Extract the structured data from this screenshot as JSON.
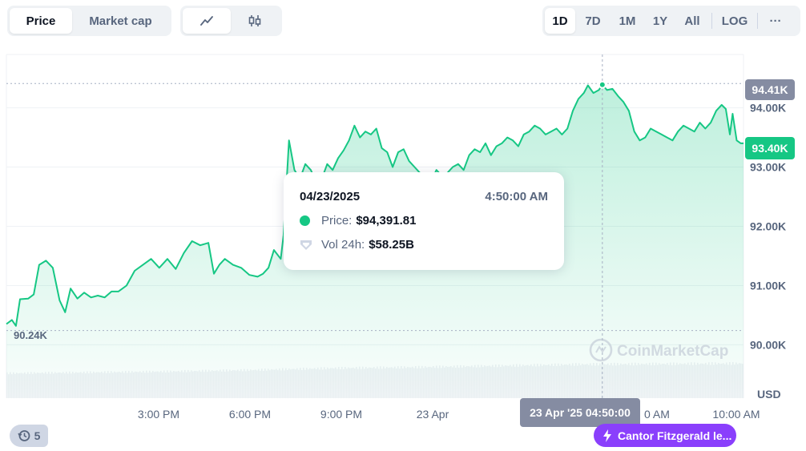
{
  "toolbar": {
    "metric_tabs": [
      "Price",
      "Market cap"
    ],
    "metric_active": "Price",
    "chart_style_icons": [
      "line-chart-icon",
      "candlestick-icon"
    ],
    "ranges": [
      "1D",
      "7D",
      "1M",
      "1Y",
      "All"
    ],
    "range_active": "1D",
    "log_label": "LOG",
    "more_label": "···"
  },
  "chart_data": {
    "type": "area",
    "x_labels": [
      "3:00 PM",
      "6:00 PM",
      "9:00 PM",
      "23 Apr",
      "",
      "10:00 AM"
    ],
    "hover_x_label": "23 Apr '25 04:50:00",
    "hidden_tick_fragment": "0 AM",
    "y_ticks": [
      "94.00K",
      "93.00K",
      "92.00K",
      "91.00K",
      "90.00K"
    ],
    "y_unit": "USD",
    "high_label": "94.41K",
    "low_label": "90.24K",
    "current_label": "93.40K",
    "ylim": [
      89.1,
      94.9
    ],
    "series": [
      {
        "values": [
          [
            0.0,
            90.35
          ],
          [
            0.2,
            90.42
          ],
          [
            0.35,
            90.32
          ],
          [
            0.5,
            90.77
          ],
          [
            0.8,
            90.78
          ],
          [
            1.0,
            90.85
          ],
          [
            1.2,
            91.35
          ],
          [
            1.45,
            91.42
          ],
          [
            1.7,
            91.3
          ],
          [
            1.95,
            90.75
          ],
          [
            2.15,
            90.55
          ],
          [
            2.35,
            90.95
          ],
          [
            2.6,
            90.78
          ],
          [
            2.85,
            90.88
          ],
          [
            3.1,
            90.8
          ],
          [
            3.35,
            90.83
          ],
          [
            3.6,
            90.8
          ],
          [
            3.85,
            90.9
          ],
          [
            4.1,
            90.9
          ],
          [
            4.4,
            91.0
          ],
          [
            4.7,
            91.25
          ],
          [
            5.0,
            91.35
          ],
          [
            5.3,
            91.45
          ],
          [
            5.6,
            91.3
          ],
          [
            5.9,
            91.45
          ],
          [
            6.2,
            91.28
          ],
          [
            6.5,
            91.55
          ],
          [
            6.8,
            91.75
          ],
          [
            7.1,
            91.68
          ],
          [
            7.4,
            91.72
          ],
          [
            7.6,
            91.2
          ],
          [
            7.8,
            91.35
          ],
          [
            8.0,
            91.45
          ],
          [
            8.3,
            91.35
          ],
          [
            8.6,
            91.3
          ],
          [
            8.9,
            91.18
          ],
          [
            9.2,
            91.15
          ],
          [
            9.4,
            91.2
          ],
          [
            9.6,
            91.3
          ],
          [
            9.8,
            91.6
          ],
          [
            10.05,
            91.45
          ],
          [
            10.15,
            91.85
          ],
          [
            10.35,
            93.45
          ],
          [
            10.55,
            92.95
          ],
          [
            10.75,
            92.8
          ],
          [
            10.95,
            93.05
          ],
          [
            11.15,
            92.95
          ],
          [
            11.35,
            92.75
          ],
          [
            11.55,
            92.8
          ],
          [
            11.75,
            93.05
          ],
          [
            11.95,
            92.95
          ],
          [
            12.15,
            93.15
          ],
          [
            12.35,
            93.28
          ],
          [
            12.55,
            93.45
          ],
          [
            12.75,
            93.7
          ],
          [
            12.95,
            93.5
          ],
          [
            13.15,
            93.6
          ],
          [
            13.35,
            93.55
          ],
          [
            13.55,
            93.65
          ],
          [
            13.75,
            93.32
          ],
          [
            13.95,
            93.25
          ],
          [
            14.15,
            93.0
          ],
          [
            14.35,
            93.25
          ],
          [
            14.55,
            93.3
          ],
          [
            14.75,
            93.1
          ],
          [
            14.95,
            93.0
          ],
          [
            15.15,
            92.9
          ],
          [
            15.35,
            92.85
          ],
          [
            15.55,
            92.75
          ],
          [
            15.75,
            92.95
          ],
          [
            15.95,
            92.85
          ],
          [
            16.15,
            92.9
          ],
          [
            16.35,
            93.0
          ],
          [
            16.55,
            93.05
          ],
          [
            16.75,
            92.95
          ],
          [
            16.95,
            93.2
          ],
          [
            17.15,
            93.3
          ],
          [
            17.35,
            93.25
          ],
          [
            17.55,
            93.4
          ],
          [
            17.75,
            93.2
          ],
          [
            17.95,
            93.35
          ],
          [
            18.15,
            93.4
          ],
          [
            18.35,
            93.5
          ],
          [
            18.55,
            93.45
          ],
          [
            18.75,
            93.35
          ],
          [
            18.95,
            93.55
          ],
          [
            19.15,
            93.6
          ],
          [
            19.35,
            93.7
          ],
          [
            19.55,
            93.65
          ],
          [
            19.75,
            93.55
          ],
          [
            19.95,
            93.6
          ],
          [
            20.15,
            93.65
          ],
          [
            20.35,
            93.55
          ],
          [
            20.55,
            93.65
          ],
          [
            20.75,
            93.95
          ],
          [
            20.95,
            94.15
          ],
          [
            21.15,
            94.25
          ],
          [
            21.3,
            94.38
          ],
          [
            21.5,
            94.25
          ],
          [
            21.7,
            94.3
          ],
          [
            21.83,
            94.39
          ],
          [
            22.0,
            94.3
          ],
          [
            22.2,
            94.32
          ],
          [
            22.4,
            94.2
          ],
          [
            22.6,
            94.1
          ],
          [
            22.8,
            93.95
          ],
          [
            23.0,
            93.6
          ],
          [
            23.2,
            93.45
          ],
          [
            23.4,
            93.5
          ],
          [
            23.6,
            93.65
          ],
          [
            23.8,
            93.6
          ],
          [
            24.0,
            93.55
          ],
          [
            24.2,
            93.5
          ],
          [
            24.4,
            93.45
          ],
          [
            24.6,
            93.6
          ],
          [
            24.8,
            93.7
          ],
          [
            25.0,
            93.65
          ],
          [
            25.2,
            93.6
          ],
          [
            25.4,
            93.75
          ],
          [
            25.6,
            93.65
          ],
          [
            25.8,
            93.75
          ],
          [
            26.0,
            93.95
          ],
          [
            26.2,
            94.05
          ],
          [
            26.35,
            93.98
          ],
          [
            26.5,
            93.55
          ],
          [
            26.6,
            93.9
          ],
          [
            26.75,
            93.45
          ],
          [
            26.9,
            93.4
          ],
          [
            27.0,
            93.4
          ]
        ]
      }
    ],
    "volume": [
      [
        0,
        0.53
      ],
      [
        3,
        0.55
      ],
      [
        6,
        0.57
      ],
      [
        9,
        0.6
      ],
      [
        12,
        0.64
      ],
      [
        15,
        0.66
      ],
      [
        18,
        0.69
      ],
      [
        21,
        0.72
      ],
      [
        24,
        0.73
      ],
      [
        27,
        0.74
      ]
    ],
    "tooltip": {
      "date": "04/23/2025",
      "time": "4:50:00 AM",
      "price_label": "Price:",
      "price_value": "$94,391.81",
      "vol_label": "Vol 24h:",
      "vol_value": "$58.25B"
    },
    "watermark": "CoinMarketCap"
  },
  "history": {
    "count": "5"
  },
  "news": {
    "label": "Cantor Fitzgerald le..."
  },
  "colors": {
    "line": "#16c784",
    "label_high": "#858ca2",
    "label_current": "#16c784",
    "hover_label": "#858ca2",
    "news": "#8a3ffc"
  }
}
